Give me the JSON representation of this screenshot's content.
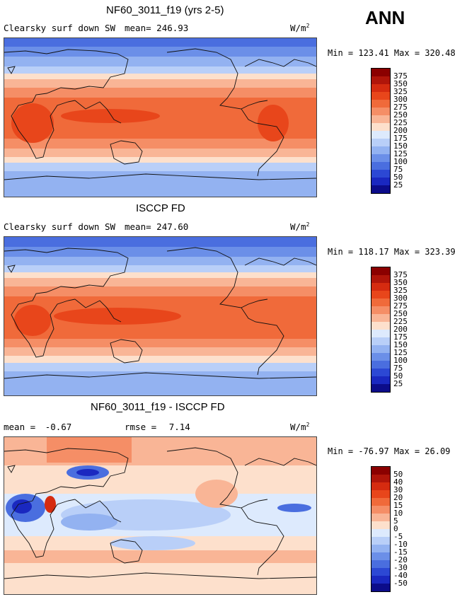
{
  "season": "ANN",
  "units": "W/m",
  "units_sup": "2",
  "panels": [
    {
      "title": "NF60_3011_f19 (yrs 2-5)",
      "variable": "Clearsky surf down SW",
      "mean_label": "mean=",
      "mean_value": "246.93",
      "minmax": "Min = 123.41 Max = 320.48",
      "levels": [
        "375",
        "350",
        "325",
        "300",
        "275",
        "250",
        "225",
        "200",
        "175",
        "150",
        "125",
        "100",
        "75",
        "50",
        "25"
      ],
      "colors": [
        "#8b0000",
        "#b0150a",
        "#d52b10",
        "#e8461b",
        "#f06a3a",
        "#f58e66",
        "#f9b596",
        "#fde0cc",
        "#ddeafd",
        "#b9cff8",
        "#93b2f1",
        "#6b8fe8",
        "#4a6edf",
        "#2c48d4",
        "#1a28c0",
        "#0c0c8a"
      ]
    },
    {
      "title": "ISCCP FD",
      "variable": "Clearsky surf down SW",
      "mean_label": "mean=",
      "mean_value": "247.60",
      "minmax": "Min = 118.17 Max = 323.39",
      "levels": [
        "375",
        "350",
        "325",
        "300",
        "275",
        "250",
        "225",
        "200",
        "175",
        "150",
        "125",
        "100",
        "75",
        "50",
        "25"
      ],
      "colors": [
        "#8b0000",
        "#b0150a",
        "#d52b10",
        "#e8461b",
        "#f06a3a",
        "#f58e66",
        "#f9b596",
        "#fde0cc",
        "#ddeafd",
        "#b9cff8",
        "#93b2f1",
        "#6b8fe8",
        "#4a6edf",
        "#2c48d4",
        "#1a28c0",
        "#0c0c8a"
      ]
    },
    {
      "title": "NF60_3011_f19 - ISCCP FD",
      "mean_label": "mean =",
      "mean_value": "-0.67",
      "rmse_label": "rmse =",
      "rmse_value": "7.14",
      "minmax": "Min = -76.97 Max =  26.09",
      "levels": [
        "50",
        "40",
        "30",
        "20",
        "15",
        "10",
        "5",
        "0",
        "-5",
        "-10",
        "-15",
        "-20",
        "-30",
        "-40",
        "-50"
      ],
      "colors": [
        "#8b0000",
        "#b0150a",
        "#d52b10",
        "#e8461b",
        "#f06a3a",
        "#f58e66",
        "#f9b596",
        "#fde0cc",
        "#ddeafd",
        "#b9cff8",
        "#93b2f1",
        "#6b8fe8",
        "#4a6edf",
        "#2c48d4",
        "#1a28c0",
        "#0c0c8a"
      ]
    }
  ]
}
